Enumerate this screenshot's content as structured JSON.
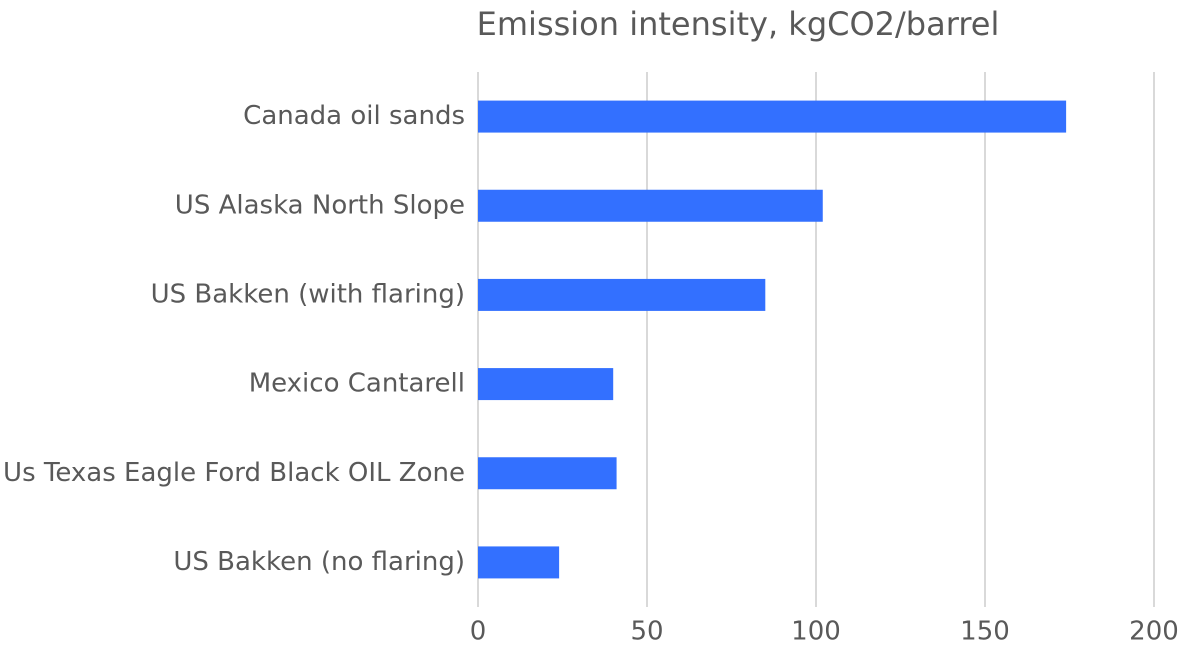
{
  "chart_data": {
    "type": "bar",
    "orientation": "horizontal",
    "title": "Emission intensity, kgCO2/barrel",
    "categories": [
      "Canada oil sands",
      "US Alaska North Slope",
      "US Bakken (with flaring)",
      "Mexico Cantarell",
      "Us Texas Eagle Ford Black OIL Zone",
      "US Bakken (no flaring)"
    ],
    "values": [
      174,
      102,
      85,
      40,
      41,
      24
    ],
    "color": "#3370ff",
    "xlim": [
      0,
      200
    ],
    "xticks": [
      0,
      50,
      100,
      150,
      200
    ],
    "grid": true
  }
}
